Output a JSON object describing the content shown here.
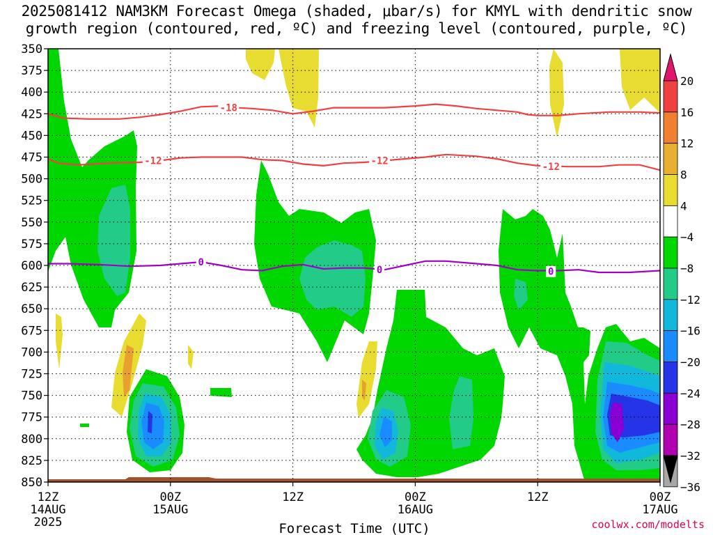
{
  "title": {
    "line1": "2025081412 NAM3KM Forecast Omega (shaded, μbar/s) for KMYL with dendritic snow",
    "line2": "growth region (contoured, red, ºC) and freezing level (contoured, purple, ºC)"
  },
  "credit": "coolwx.com/modelts",
  "colors": {
    "green": "#00d600",
    "teal": "#22cc88",
    "cyan": "#12b8dc",
    "blue": "#1a8cff",
    "deepblue": "#2434e6",
    "purple": "#8a00d4",
    "yellow": "#e8dc30",
    "orange": "#e8a030",
    "red_contour": "#f04040",
    "purple_contour": "#a000c8",
    "ground": "#a0522d"
  },
  "chart_data": {
    "type": "heatmap",
    "xlabel": "Forecast Time (UTC)",
    "xlim_hours": [
      0,
      60
    ],
    "ylim_hPa": [
      850,
      350
    ],
    "y_ticks": [
      350,
      375,
      400,
      425,
      450,
      475,
      500,
      525,
      550,
      575,
      600,
      625,
      650,
      675,
      700,
      725,
      750,
      775,
      800,
      825,
      850
    ],
    "x_ticks": [
      {
        "hour": 0,
        "label": "12Z",
        "date": "14AUG",
        "year": "2025"
      },
      {
        "hour": 12,
        "label": "00Z",
        "date": "15AUG",
        "year": ""
      },
      {
        "hour": 24,
        "label": "12Z",
        "date": "",
        "year": ""
      },
      {
        "hour": 36,
        "label": "00Z",
        "date": "16AUG",
        "year": ""
      },
      {
        "hour": 48,
        "label": "12Z",
        "date": "",
        "year": ""
      },
      {
        "hour": 60,
        "label": "00Z",
        "date": "17AUG",
        "year": ""
      }
    ],
    "colorbar_labels": [
      "20",
      "16",
      "12",
      "8",
      "4",
      "−4",
      "−8",
      "−12",
      "−16",
      "−20",
      "−24",
      "−28",
      "−32",
      "−36"
    ],
    "colorbar_colors": [
      "#e0156e",
      "#f04040",
      "#f08030",
      "#e8b030",
      "#e8dc30",
      "#ffffff",
      "#00d600",
      "#22cc88",
      "#12b8dc",
      "#1a8cff",
      "#2434e6",
      "#8a00d4",
      "#b000b0",
      "#a8a8a8"
    ],
    "contours": [
      {
        "label": "-18",
        "color": "red",
        "points": [
          [
            0,
            425
          ],
          [
            1.5,
            430
          ],
          [
            4,
            431
          ],
          [
            7,
            431
          ],
          [
            9,
            429
          ],
          [
            11,
            426
          ],
          [
            13,
            422
          ],
          [
            15,
            417
          ],
          [
            17,
            416
          ],
          [
            18.5,
            418
          ],
          [
            20,
            419
          ],
          [
            22,
            421
          ],
          [
            24,
            425
          ],
          [
            26,
            422
          ],
          [
            28,
            418
          ],
          [
            31,
            418
          ],
          [
            33,
            418
          ],
          [
            36,
            416
          ],
          [
            38,
            414
          ],
          [
            40,
            416
          ],
          [
            42,
            419
          ],
          [
            44,
            421
          ],
          [
            46,
            423
          ],
          [
            47,
            426
          ],
          [
            48,
            427
          ],
          [
            50,
            427
          ],
          [
            52,
            425
          ],
          [
            55,
            423
          ],
          [
            58,
            423
          ],
          [
            60,
            424
          ]
        ],
        "label_at": [
          17.7,
          418
        ]
      },
      {
        "label": "-12",
        "color": "red",
        "points": [
          [
            0,
            477
          ],
          [
            1,
            482
          ],
          [
            3,
            484
          ],
          [
            6,
            482
          ],
          [
            9,
            481
          ],
          [
            11,
            479
          ],
          [
            13,
            476
          ],
          [
            15,
            475
          ],
          [
            17,
            475
          ],
          [
            19,
            475
          ],
          [
            21,
            478
          ],
          [
            23,
            479
          ],
          [
            25,
            483
          ],
          [
            27,
            485
          ],
          [
            29,
            482
          ],
          [
            31,
            481
          ],
          [
            33,
            479
          ],
          [
            35,
            477
          ],
          [
            37,
            475
          ],
          [
            39,
            472
          ],
          [
            42,
            474
          ],
          [
            44,
            477
          ],
          [
            46,
            482
          ],
          [
            48,
            485
          ],
          [
            51,
            486
          ],
          [
            54,
            486
          ],
          [
            56,
            484
          ],
          [
            58,
            484
          ],
          [
            60,
            490
          ]
        ],
        "label_at": [
          10.3,
          479
        ]
      },
      {
        "label": "-12",
        "color": "red",
        "points": [],
        "label_at": [
          32.5,
          479
        ]
      },
      {
        "label": "-12",
        "color": "red",
        "points": [],
        "label_at": [
          49.3,
          486
        ]
      },
      {
        "label": "0",
        "color": "purple",
        "points": [
          [
            0,
            598
          ],
          [
            2,
            598
          ],
          [
            5,
            599
          ],
          [
            8,
            601
          ],
          [
            11,
            600
          ],
          [
            13,
            598
          ],
          [
            15,
            596
          ],
          [
            17,
            600
          ],
          [
            19,
            605
          ],
          [
            21,
            606
          ],
          [
            23,
            601
          ],
          [
            25,
            599
          ],
          [
            27,
            604
          ],
          [
            29,
            603
          ],
          [
            31,
            603
          ],
          [
            33,
            605
          ],
          [
            35,
            600
          ],
          [
            37,
            595
          ],
          [
            39,
            595
          ],
          [
            42,
            598
          ],
          [
            44,
            600
          ],
          [
            46,
            605
          ],
          [
            48,
            606
          ],
          [
            50,
            606
          ],
          [
            52,
            605
          ],
          [
            54,
            608
          ],
          [
            57,
            608
          ],
          [
            60,
            606
          ]
        ],
        "label_at": [
          15,
          596
        ]
      },
      {
        "label": "0",
        "color": "purple",
        "points": [],
        "label_at": [
          32.5,
          605
        ]
      },
      {
        "label": "0",
        "color": "purple",
        "points": [],
        "label_at": [
          49.3,
          607
        ]
      }
    ]
  }
}
